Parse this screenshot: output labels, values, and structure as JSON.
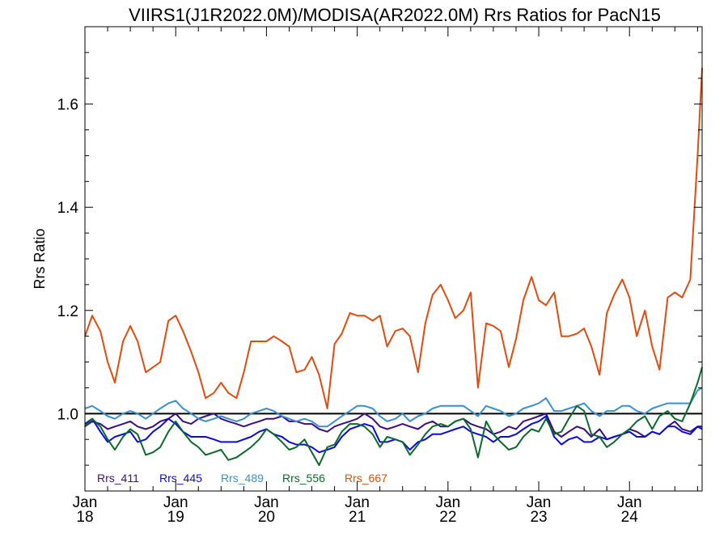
{
  "chart_data": {
    "type": "line",
    "title": "VIIRS1(J1R2022.0M)/MODISA(AR2022.0M)  Rrs Ratios for PacN15",
    "ylabel": "Rrs Ratio",
    "xlabel": "",
    "xlim": [
      2018.0,
      2024.8
    ],
    "ylim": [
      0.85,
      1.75
    ],
    "yticks": [
      {
        "value": 1.0,
        "label": "1.0"
      },
      {
        "value": 1.2,
        "label": "1.2"
      },
      {
        "value": 1.4,
        "label": "1.4"
      },
      {
        "value": 1.6,
        "label": "1.6"
      }
    ],
    "xticks": [
      {
        "value": 2018,
        "month": "Jan",
        "year": "18"
      },
      {
        "value": 2019,
        "month": "Jan",
        "year": "19"
      },
      {
        "value": 2020,
        "month": "Jan",
        "year": "20"
      },
      {
        "value": 2021,
        "month": "Jan",
        "year": "21"
      },
      {
        "value": 2022,
        "month": "Jan",
        "year": "22"
      },
      {
        "value": 2023,
        "month": "Jan",
        "year": "23"
      },
      {
        "value": 2024,
        "month": "Jan",
        "year": "24"
      }
    ],
    "reference_line": 1.0,
    "legend_position": "bottom-left",
    "x": [
      2018.0,
      2018.08,
      2018.17,
      2018.25,
      2018.33,
      2018.42,
      2018.5,
      2018.58,
      2018.67,
      2018.75,
      2018.83,
      2018.92,
      2019.0,
      2019.08,
      2019.17,
      2019.25,
      2019.33,
      2019.42,
      2019.5,
      2019.58,
      2019.67,
      2019.75,
      2019.83,
      2019.92,
      2020.0,
      2020.08,
      2020.17,
      2020.25,
      2020.33,
      2020.42,
      2020.5,
      2020.58,
      2020.67,
      2020.75,
      2020.83,
      2020.92,
      2021.0,
      2021.08,
      2021.17,
      2021.25,
      2021.33,
      2021.42,
      2021.5,
      2021.58,
      2021.67,
      2021.75,
      2021.83,
      2021.92,
      2022.0,
      2022.08,
      2022.17,
      2022.25,
      2022.33,
      2022.42,
      2022.5,
      2022.58,
      2022.67,
      2022.75,
      2022.83,
      2022.92,
      2023.0,
      2023.08,
      2023.17,
      2023.25,
      2023.33,
      2023.42,
      2023.5,
      2023.58,
      2023.67,
      2023.75,
      2023.83,
      2023.92,
      2024.0,
      2024.08,
      2024.17,
      2024.25,
      2024.33,
      2024.42,
      2024.5,
      2024.58,
      2024.67,
      2024.75,
      2024.8
    ],
    "series": [
      {
        "name": "Rrs_411",
        "color": "#3d0f7a",
        "values": [
          0.975,
          0.985,
          0.98,
          0.97,
          0.975,
          0.98,
          0.985,
          0.975,
          0.97,
          0.975,
          0.985,
          0.99,
          1.0,
          0.985,
          0.98,
          0.99,
          0.995,
          1.0,
          0.99,
          0.985,
          0.98,
          0.975,
          0.98,
          0.985,
          0.99,
          0.99,
          0.995,
          0.985,
          0.985,
          0.98,
          0.98,
          0.97,
          0.965,
          0.975,
          0.98,
          0.985,
          0.99,
          1.0,
          0.99,
          0.975,
          0.97,
          0.975,
          0.98,
          0.975,
          0.97,
          0.98,
          0.985,
          0.975,
          0.975,
          0.985,
          0.99,
          0.98,
          0.975,
          0.97,
          0.96,
          0.965,
          0.975,
          0.97,
          0.985,
          0.99,
          0.995,
          1.0,
          0.965,
          0.955,
          0.965,
          0.975,
          0.97,
          0.955,
          0.97,
          0.95,
          0.955,
          0.96,
          0.97,
          0.965,
          0.955,
          0.965,
          0.96,
          0.975,
          0.985,
          0.97,
          0.965,
          0.975,
          0.975
        ]
      },
      {
        "name": "Rrs_445",
        "color": "#0a0ae0",
        "values": [
          0.98,
          0.99,
          0.965,
          0.945,
          0.955,
          0.96,
          0.965,
          0.945,
          0.95,
          0.965,
          0.975,
          0.99,
          0.98,
          0.965,
          0.955,
          0.955,
          0.955,
          0.95,
          0.945,
          0.945,
          0.945,
          0.95,
          0.955,
          0.965,
          0.97,
          0.96,
          0.955,
          0.945,
          0.94,
          0.94,
          0.935,
          0.925,
          0.93,
          0.935,
          0.955,
          0.97,
          0.975,
          0.98,
          0.975,
          0.945,
          0.945,
          0.95,
          0.945,
          0.93,
          0.945,
          0.95,
          0.96,
          0.96,
          0.965,
          0.97,
          0.975,
          0.965,
          0.96,
          0.955,
          0.945,
          0.955,
          0.955,
          0.96,
          0.97,
          0.98,
          0.985,
          0.995,
          0.955,
          0.94,
          0.95,
          0.955,
          0.945,
          0.945,
          0.955,
          0.95,
          0.955,
          0.96,
          0.965,
          0.955,
          0.955,
          0.965,
          0.96,
          0.975,
          0.975,
          0.965,
          0.96,
          0.975,
          0.97
        ]
      },
      {
        "name": "Rrs_489",
        "color": "#3a8fd0",
        "values": [
          1.01,
          1.015,
          1.005,
          0.995,
          0.99,
          1.0,
          1.005,
          1.0,
          0.99,
          1.0,
          1.01,
          1.02,
          1.025,
          1.01,
          1.0,
          0.99,
          0.985,
          0.99,
          0.995,
          0.99,
          0.985,
          0.99,
          1.0,
          1.005,
          1.01,
          1.005,
          0.995,
          0.99,
          0.985,
          0.99,
          0.985,
          0.975,
          0.975,
          0.985,
          0.995,
          1.005,
          1.015,
          1.015,
          1.01,
          0.995,
          0.985,
          0.99,
          1.0,
          0.985,
          0.995,
          1.0,
          1.01,
          1.015,
          1.015,
          1.015,
          1.015,
          1.005,
          0.995,
          1.015,
          1.01,
          1.005,
          0.995,
          1.0,
          1.01,
          1.015,
          1.02,
          1.03,
          1.005,
          1.005,
          1.01,
          1.015,
          1.02,
          1.005,
          0.995,
          1.005,
          1.005,
          1.015,
          1.015,
          1.005,
          1.0,
          1.01,
          1.015,
          1.02,
          1.02,
          1.02,
          1.02,
          1.045,
          1.05
        ]
      },
      {
        "name": "Rrs_556",
        "color": "#0b6a2a",
        "values": [
          0.975,
          0.99,
          0.975,
          0.95,
          0.93,
          0.955,
          0.97,
          0.96,
          0.92,
          0.925,
          0.935,
          0.965,
          0.985,
          0.965,
          0.945,
          0.935,
          0.92,
          0.925,
          0.93,
          0.91,
          0.915,
          0.925,
          0.935,
          0.95,
          0.97,
          0.96,
          0.945,
          0.93,
          0.935,
          0.95,
          0.925,
          0.9,
          0.935,
          0.94,
          0.965,
          0.98,
          0.98,
          0.975,
          0.96,
          0.935,
          0.955,
          0.95,
          0.945,
          0.92,
          0.94,
          0.96,
          0.975,
          0.98,
          0.975,
          0.985,
          0.99,
          0.97,
          0.915,
          0.985,
          0.96,
          0.945,
          0.93,
          0.935,
          0.955,
          0.97,
          0.965,
          0.99,
          0.96,
          0.965,
          0.99,
          1.015,
          1.005,
          0.96,
          0.955,
          0.935,
          0.945,
          0.96,
          0.97,
          0.985,
          0.995,
          0.97,
          0.995,
          1.005,
          0.99,
          0.985,
          1.02,
          1.06,
          1.09
        ]
      },
      {
        "name": "Rrs_667",
        "color": "#e04c0e",
        "values": [
          1.15,
          1.19,
          1.16,
          1.1,
          1.06,
          1.14,
          1.17,
          1.14,
          1.08,
          1.09,
          1.1,
          1.18,
          1.19,
          1.16,
          1.12,
          1.08,
          1.03,
          1.04,
          1.06,
          1.04,
          1.03,
          1.08,
          1.14,
          1.14,
          1.14,
          1.15,
          1.14,
          1.13,
          1.08,
          1.085,
          1.11,
          1.075,
          1.01,
          1.135,
          1.155,
          1.195,
          1.19,
          1.19,
          1.18,
          1.19,
          1.13,
          1.16,
          1.165,
          1.15,
          1.08,
          1.175,
          1.23,
          1.25,
          1.22,
          1.185,
          1.2,
          1.235,
          1.05,
          1.175,
          1.17,
          1.16,
          1.09,
          1.145,
          1.22,
          1.265,
          1.22,
          1.21,
          1.235,
          1.15,
          1.15,
          1.155,
          1.165,
          1.13,
          1.075,
          1.195,
          1.23,
          1.26,
          1.225,
          1.15,
          1.2,
          1.13,
          1.085,
          1.225,
          1.235,
          1.225,
          1.26,
          1.5,
          1.67
        ]
      }
    ]
  }
}
